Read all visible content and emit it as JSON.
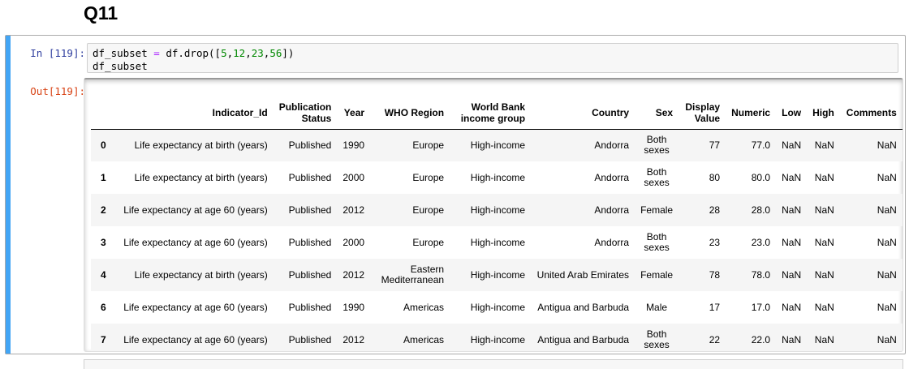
{
  "heading": "Q11",
  "input_prompt": "In [119]:",
  "output_prompt": "Out[119]:",
  "code": {
    "line1": {
      "a": "df_subset ",
      "eq": "=",
      "b": " df.drop([",
      "n1": "5",
      "c1": ",",
      "n2": "12",
      "c2": ",",
      "n3": "23",
      "c3": ",",
      "n4": "56",
      "end": "])"
    },
    "line2": "df_subset"
  },
  "table": {
    "columns": [
      "Indicator_Id",
      "Publication Status",
      "Year",
      "WHO Region",
      "World Bank income group",
      "Country",
      "Sex",
      "Display Value",
      "Numeric",
      "Low",
      "High",
      "Comments"
    ],
    "rows": [
      {
        "index": "0",
        "cells": [
          "Life expectancy at birth (years)",
          "Published",
          "1990",
          "Europe",
          "High-income",
          "Andorra",
          "Both sexes",
          "77",
          "77.0",
          "NaN",
          "NaN",
          "NaN"
        ]
      },
      {
        "index": "1",
        "cells": [
          "Life expectancy at birth (years)",
          "Published",
          "2000",
          "Europe",
          "High-income",
          "Andorra",
          "Both sexes",
          "80",
          "80.0",
          "NaN",
          "NaN",
          "NaN"
        ]
      },
      {
        "index": "2",
        "cells": [
          "Life expectancy at age 60 (years)",
          "Published",
          "2012",
          "Europe",
          "High-income",
          "Andorra",
          "Female",
          "28",
          "28.0",
          "NaN",
          "NaN",
          "NaN"
        ]
      },
      {
        "index": "3",
        "cells": [
          "Life expectancy at age 60 (years)",
          "Published",
          "2000",
          "Europe",
          "High-income",
          "Andorra",
          "Both sexes",
          "23",
          "23.0",
          "NaN",
          "NaN",
          "NaN"
        ]
      },
      {
        "index": "4",
        "cells": [
          "Life expectancy at birth (years)",
          "Published",
          "2012",
          "Eastern Mediterranean",
          "High-income",
          "United Arab Emirates",
          "Female",
          "78",
          "78.0",
          "NaN",
          "NaN",
          "NaN"
        ]
      },
      {
        "index": "6",
        "cells": [
          "Life expectancy at age 60 (years)",
          "Published",
          "1990",
          "Americas",
          "High-income",
          "Antigua and Barbuda",
          "Male",
          "17",
          "17.0",
          "NaN",
          "NaN",
          "NaN"
        ]
      },
      {
        "index": "7",
        "cells": [
          "Life expectancy at age 60 (years)",
          "Published",
          "2012",
          "Americas",
          "High-income",
          "Antigua and Barbuda",
          "Both sexes",
          "22",
          "22.0",
          "NaN",
          "NaN",
          "NaN"
        ]
      }
    ]
  }
}
